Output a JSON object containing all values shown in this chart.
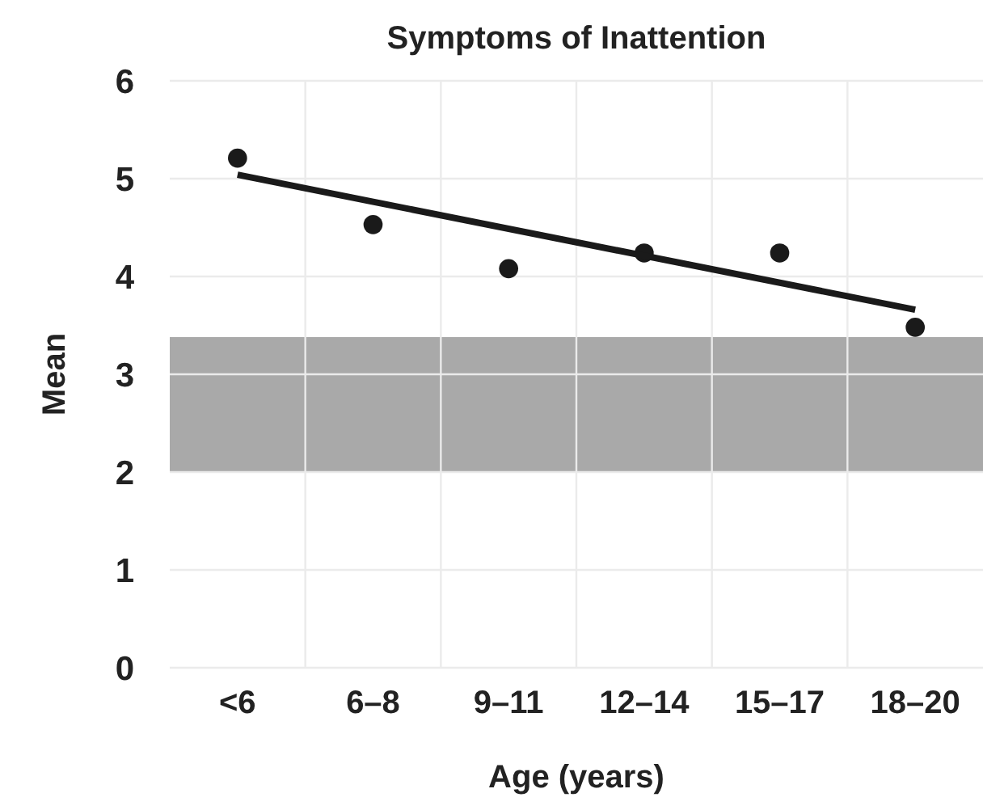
{
  "chart_data": {
    "type": "scatter",
    "title": "Symptoms of Inattention",
    "xlabel": "Age (years)",
    "ylabel": "Mean",
    "categories": [
      "<6",
      "6–8",
      "9–11",
      "12–14",
      "15–17",
      "18–20"
    ],
    "series": [
      {
        "color": "#1a1a1a",
        "marker": "circle",
        "values": [
          5.21,
          4.53,
          4.08,
          4.24,
          4.24,
          3.48
        ]
      },
      {
        "type": "line",
        "color": "#1a1a1a",
        "line_style": "solid",
        "x": [
          "<6",
          "18–20"
        ],
        "values": [
          5.04,
          3.66
        ]
      }
    ],
    "ylim": [
      0,
      6
    ],
    "yticks": [
      0,
      1,
      2,
      3,
      4,
      5,
      6
    ],
    "bands": [
      {
        "axis": "y",
        "from": 2,
        "to": 3.38,
        "color": "#a9a9a9"
      }
    ],
    "grid": true
  }
}
